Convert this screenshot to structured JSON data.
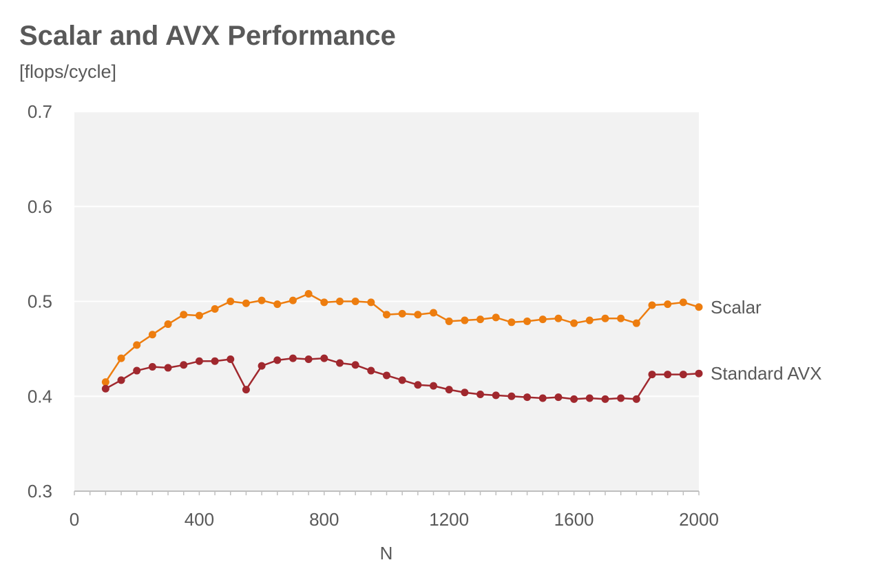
{
  "chart_data": {
    "type": "line",
    "title": "Scalar and AVX Performance",
    "subtitle": "[flops/cycle]",
    "xlabel": "N",
    "ylabel": "",
    "xlim": [
      0,
      2000
    ],
    "ylim": [
      0.3,
      0.7
    ],
    "x_ticks": [
      "0",
      "400",
      "800",
      "1200",
      "1600",
      "2000"
    ],
    "y_ticks": [
      "0.3",
      "0.4",
      "0.5",
      "0.6",
      "0.7"
    ],
    "grid": "horizontal",
    "legend": "inline labels at right end of each series",
    "background": "#f2f2f2",
    "x": [
      100,
      150,
      200,
      250,
      300,
      350,
      400,
      450,
      500,
      550,
      600,
      650,
      700,
      750,
      800,
      850,
      900,
      950,
      1000,
      1050,
      1100,
      1150,
      1200,
      1250,
      1300,
      1350,
      1400,
      1450,
      1500,
      1550,
      1600,
      1650,
      1700,
      1750,
      1800,
      1850,
      1900,
      1950,
      2000
    ],
    "series": [
      {
        "name": "Scalar",
        "color": "#ed7d0f",
        "values": [
          0.415,
          0.44,
          0.454,
          0.465,
          0.476,
          0.486,
          0.485,
          0.492,
          0.5,
          0.498,
          0.501,
          0.497,
          0.501,
          0.508,
          0.499,
          0.5,
          0.5,
          0.499,
          0.486,
          0.487,
          0.486,
          0.488,
          0.479,
          0.48,
          0.481,
          0.483,
          0.478,
          0.479,
          0.481,
          0.482,
          0.477,
          0.48,
          0.482,
          0.482,
          0.477,
          0.496,
          0.497,
          0.499,
          0.494
        ]
      },
      {
        "name": "Standard AVX",
        "color": "#a0282e",
        "values": [
          0.408,
          0.417,
          0.427,
          0.431,
          0.43,
          0.433,
          0.437,
          0.437,
          0.439,
          0.407,
          0.432,
          0.438,
          0.44,
          0.439,
          0.44,
          0.435,
          0.433,
          0.427,
          0.422,
          0.417,
          0.412,
          0.411,
          0.407,
          0.404,
          0.402,
          0.401,
          0.4,
          0.399,
          0.398,
          0.399,
          0.397,
          0.398,
          0.397,
          0.398,
          0.397,
          0.423,
          0.423,
          0.423,
          0.424
        ]
      }
    ]
  }
}
